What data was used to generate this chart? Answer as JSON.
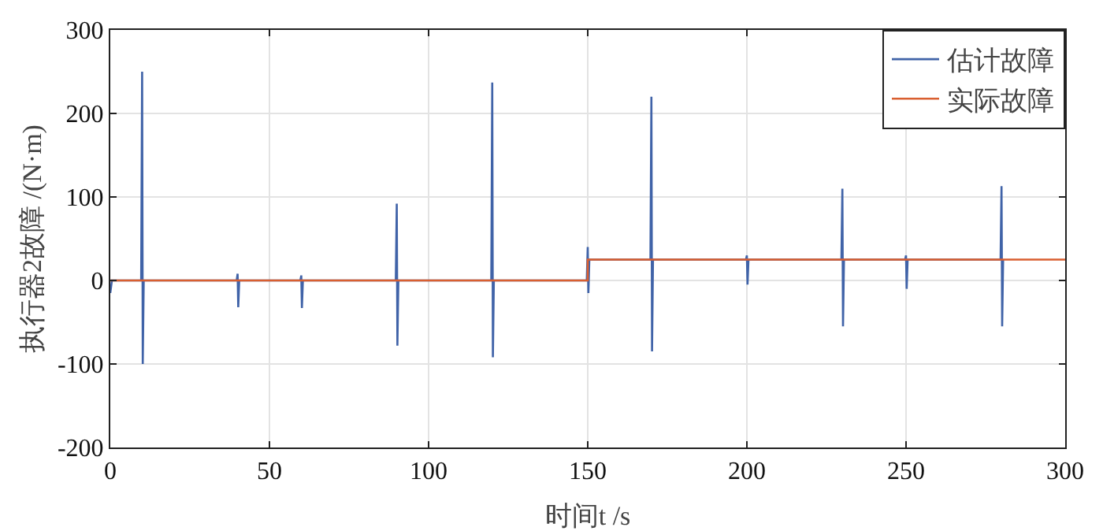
{
  "chart_data": {
    "type": "line",
    "xlabel": "时间t /s",
    "ylabel": "执行器2故障 /(N·m)",
    "xlim": [
      0,
      300
    ],
    "xticks": [
      0,
      50,
      100,
      150,
      200,
      250,
      300
    ],
    "ylim": [
      -200,
      300
    ],
    "yticks": [
      -200,
      -100,
      0,
      100,
      200,
      300
    ],
    "grid": true,
    "legend": "top right",
    "line_style": "solid",
    "marker": "none",
    "series": [
      {
        "name": "估计故障",
        "color": "#4063a8",
        "x": [
          0,
          0.5,
          9.7,
          10,
          10.2,
          10.5,
          39.7,
          40,
          40.2,
          40.5,
          59.7,
          60,
          60.2,
          60.5,
          89.7,
          90,
          90.2,
          90.5,
          119.7,
          120,
          120.2,
          120.5,
          149.7,
          150,
          150.2,
          150.5,
          169.7,
          170,
          170.2,
          170.5,
          199.7,
          200,
          200.2,
          200.5,
          229.7,
          230,
          230.2,
          230.5,
          249.7,
          250,
          250.2,
          250.5,
          279.7,
          280,
          280.2,
          280.5
        ],
        "values": [
          -15,
          0,
          0,
          250,
          -100,
          0,
          0,
          8,
          -32,
          0,
          0,
          6,
          -33,
          0,
          0,
          92,
          -78,
          0,
          0,
          237,
          -92,
          0,
          0,
          40,
          -15,
          25,
          25,
          220,
          -85,
          25,
          25,
          30,
          -5,
          25,
          25,
          110,
          -55,
          25,
          25,
          30,
          -10,
          25,
          25,
          113,
          -55,
          25
        ]
      },
      {
        "name": "实际故障",
        "color": "#d95f30",
        "x": [
          0,
          150,
          150,
          300
        ],
        "values": [
          0,
          0,
          25,
          25
        ]
      }
    ]
  }
}
